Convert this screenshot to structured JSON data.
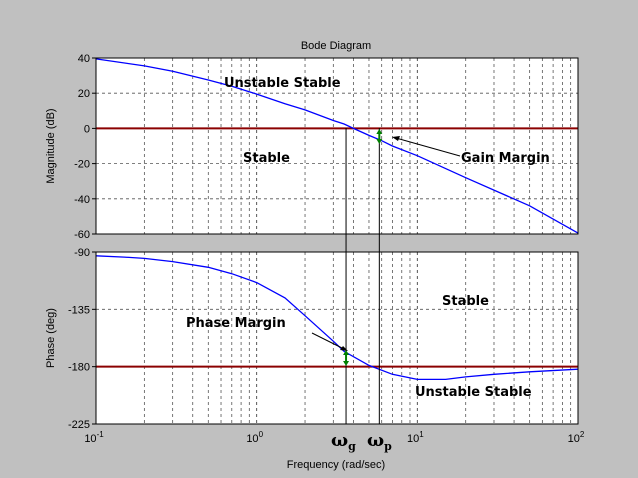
{
  "chart_data": [
    {
      "type": "line",
      "title": "Bode Diagram",
      "ylabel": "Magnitude (dB)",
      "xscale": "log",
      "xlim": [
        0.1,
        100
      ],
      "ylim": [
        -60,
        40
      ],
      "yticks": [
        "40",
        "20",
        "0",
        "-20",
        "-40",
        "-60"
      ],
      "grid": true,
      "series": [
        {
          "x": [
            0.1,
            0.2,
            0.3,
            0.5,
            0.7,
            1,
            1.5,
            2,
            3,
            3.5,
            4,
            5,
            6,
            7,
            10,
            20,
            50,
            100
          ],
          "values": [
            39.5,
            35.5,
            32.5,
            27.5,
            24,
            19.5,
            14,
            10.5,
            4.5,
            2.5,
            0,
            -4,
            -7,
            -10,
            -15.5,
            -28,
            -44,
            -59.5
          ]
        }
      ],
      "reference_line_y": 0,
      "annotations": [
        "Unstable Stable",
        "Stable",
        "Gain Margin"
      ]
    },
    {
      "type": "line",
      "ylabel": "Phase (deg)",
      "xlabel": "Frequency (rad/sec)",
      "xscale": "log",
      "xlim": [
        0.1,
        100
      ],
      "ylim": [
        -225,
        -90
      ],
      "yticks": [
        "-90",
        "-135",
        "-180",
        "-225"
      ],
      "xticks": [
        "10^-1",
        "10^0",
        "10^1",
        "10^2"
      ],
      "grid": true,
      "series": [
        {
          "x": [
            0.1,
            0.15,
            0.2,
            0.3,
            0.5,
            0.7,
            1,
            1.5,
            2,
            3,
            3.5,
            5,
            7,
            10,
            15,
            20,
            30,
            50,
            100
          ],
          "values": [
            -93,
            -94,
            -95,
            -97.5,
            -102,
            -107,
            -114,
            -126,
            -140,
            -160,
            -168,
            -179,
            -186,
            -190,
            -190,
            -188,
            -186,
            -184,
            -182
          ]
        }
      ],
      "reference_line_y": -180,
      "annotations": [
        "Stable",
        "Phase Margin",
        "Unstable Stable"
      ]
    }
  ],
  "markers": {
    "omega_g": {
      "symbol": "ω",
      "sub": "g",
      "x": 3.6
    },
    "omega_p": {
      "symbol": "ω",
      "sub": "p",
      "x": 5.8
    }
  },
  "colors": {
    "curve": "#0000ff",
    "reference": "#8b0000",
    "arrow": "#008000",
    "background": "#c0c0c0",
    "plot_bg": "#ffffff"
  }
}
